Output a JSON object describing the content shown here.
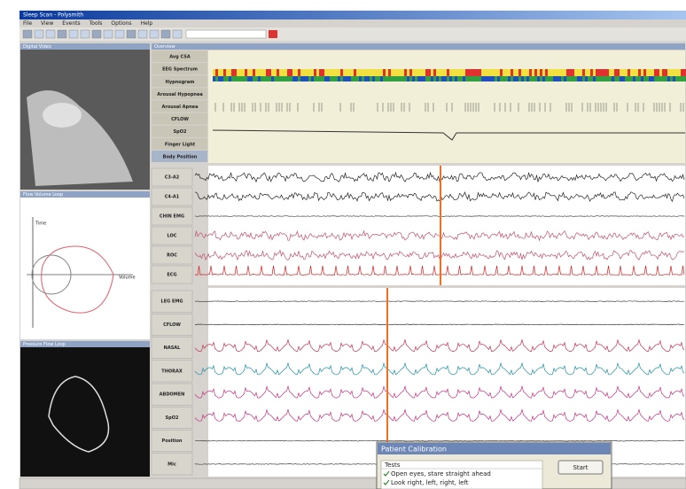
{
  "window": {
    "title": "Sleep Scan - Polysmith",
    "menu": [
      "File",
      "View",
      "Events",
      "Tools",
      "Options",
      "Help"
    ]
  },
  "panes": {
    "video": "Digital Video",
    "flow": "Flow Volume Loop",
    "flow_axes": [
      "Time",
      "Volume"
    ],
    "loop": "Pressure Flow Loop",
    "overview": "Overview"
  },
  "overview": {
    "channels": [
      "Avg CSA",
      "EEG Spectrum",
      "Hypnogram",
      "Arousal Hypopnea",
      "Arousal Apnea",
      "CFLOW",
      "SpO2",
      "Finger Light",
      "Body Position"
    ]
  },
  "eeg": {
    "channels": [
      "C3-A2",
      "C4-A1",
      "CHIN EMG",
      "LOC",
      "ROC",
      "ECG"
    ]
  },
  "resp": {
    "channels": [
      "LEG EMG",
      "CFLOW",
      "NASAL",
      "THORAX",
      "ABDOMEN",
      "SpO2",
      "Position",
      "Mic"
    ]
  },
  "dialog": {
    "title": "Patient Calibration",
    "column": "Tests",
    "button": "Start",
    "tests": [
      "Open eyes, stare straight ahead",
      "Look right, left, right, left"
    ]
  }
}
